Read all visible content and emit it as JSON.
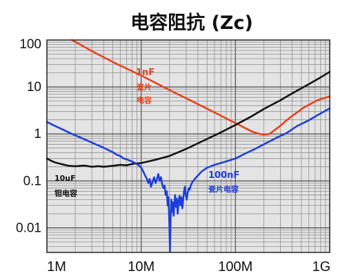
{
  "chart_data": {
    "type": "line",
    "title": "电容阻抗 (Zc)",
    "x_scale": "log",
    "y_scale": "log",
    "xlim": [
      1000000.0,
      1000000000.0
    ],
    "ylim": [
      0.003,
      100
    ],
    "grid": true,
    "x_ticks": [
      {
        "value": 1000000.0,
        "label": "1M"
      },
      {
        "value": 10000000.0,
        "label": "10M"
      },
      {
        "value": 100000000.0,
        "label": "100M"
      },
      {
        "value": 1000000000.0,
        "label": "1G"
      }
    ],
    "y_ticks": [
      {
        "value": 100,
        "label": "100"
      },
      {
        "value": 10,
        "label": "10"
      },
      {
        "value": 1,
        "label": "1"
      },
      {
        "value": 0.1,
        "label": "0.1"
      },
      {
        "value": 0.01,
        "label": "0.01"
      }
    ],
    "series": [
      {
        "label": "1nF",
        "sublabel": [
          "瓷片",
          "电容"
        ],
        "color": "#e8401c",
        "points": [
          [
            1850000.0,
            100
          ],
          [
            3000000.0,
            58
          ],
          [
            5000000.0,
            34
          ],
          [
            10000000.0,
            17.5
          ],
          [
            20000000.0,
            8.6
          ],
          [
            50000000.0,
            3.45
          ],
          [
            100000000.0,
            1.7
          ],
          [
            150000000.0,
            1.12
          ],
          [
            180000000.0,
            1.0
          ],
          [
            200000000.0,
            0.96
          ],
          [
            230000000.0,
            1.0
          ],
          [
            260000000.0,
            1.2
          ],
          [
            300000000.0,
            1.5
          ],
          [
            375000000.0,
            2.2
          ],
          [
            525000000.0,
            3.6
          ],
          [
            740000000.0,
            5.2
          ],
          [
            1000000000.0,
            6.3
          ]
        ]
      },
      {
        "label": "10uF",
        "sublabel": [
          "钽电容"
        ],
        "color": "#111111",
        "points": [
          [
            1000000.0,
            0.3
          ],
          [
            1100000.0,
            0.27
          ],
          [
            1200000.0,
            0.25
          ],
          [
            1400000.0,
            0.23
          ],
          [
            1700000.0,
            0.21
          ],
          [
            2000000.0,
            0.205
          ],
          [
            2500000.0,
            0.212
          ],
          [
            3000000.0,
            0.2
          ],
          [
            3500000.0,
            0.206
          ],
          [
            4000000.0,
            0.2
          ],
          [
            5000000.0,
            0.21
          ],
          [
            6000000.0,
            0.22
          ],
          [
            7000000.0,
            0.215
          ],
          [
            8000000.0,
            0.23
          ],
          [
            9000000.0,
            0.235
          ],
          [
            10000000.0,
            0.24
          ],
          [
            12000000.0,
            0.26
          ],
          [
            15000000.0,
            0.29
          ],
          [
            20000000.0,
            0.34
          ],
          [
            30000000.0,
            0.48
          ],
          [
            50000000.0,
            0.78
          ],
          [
            70000000.0,
            1.08
          ],
          [
            100000000.0,
            1.55
          ],
          [
            150000000.0,
            2.4
          ],
          [
            200000000.0,
            3.4
          ],
          [
            300000000.0,
            5.2
          ],
          [
            400000000.0,
            7.3
          ],
          [
            600000000.0,
            11.5
          ],
          [
            800000000.0,
            16
          ],
          [
            1000000000.0,
            21
          ]
        ]
      },
      {
        "label": "100nF",
        "sublabel": [
          "瓷片电容"
        ],
        "color": "#1d3ed8",
        "points": [
          [
            1000000.0,
            1.8
          ],
          [
            1200000.0,
            1.5
          ],
          [
            1500000.0,
            1.22
          ],
          [
            1800000.0,
            1.02
          ],
          [
            2200000.0,
            0.86
          ],
          [
            2700000.0,
            0.72
          ],
          [
            3300000.0,
            0.6
          ],
          [
            3900000.0,
            0.52
          ],
          [
            4500000.0,
            0.45
          ],
          [
            5000000.0,
            0.41
          ],
          [
            5500000.0,
            0.36
          ],
          [
            6000000.0,
            0.34
          ],
          [
            6500000.0,
            0.3
          ],
          [
            7000000.0,
            0.29
          ],
          [
            7500000.0,
            0.27
          ],
          [
            8000000.0,
            0.26
          ],
          [
            8600000.0,
            0.24
          ],
          [
            9300000.0,
            0.22
          ],
          [
            10000000.0,
            0.19
          ],
          [
            10500000.0,
            0.16
          ],
          [
            11000000.0,
            0.13
          ],
          [
            11500000.0,
            0.11
          ],
          [
            11900000.0,
            0.09
          ],
          [
            12300000.0,
            0.11
          ],
          [
            12700000.0,
            0.075
          ],
          [
            13200000.0,
            0.095
          ],
          [
            13700000.0,
            0.12
          ],
          [
            14200000.0,
            0.09
          ],
          [
            14700000.0,
            0.11
          ],
          [
            15200000.0,
            0.14
          ],
          [
            15700000.0,
            0.1
          ],
          [
            16200000.0,
            0.12
          ],
          [
            16700000.0,
            0.085
          ],
          [
            17200000.0,
            0.07
          ],
          [
            17700000.0,
            0.08
          ],
          [
            18200000.0,
            0.05
          ],
          [
            18700000.0,
            0.06
          ],
          [
            19100000.0,
            0.03
          ],
          [
            19500000.0,
            0.045
          ],
          [
            19900000.0,
            0.012
          ],
          [
            20200000.0,
            0.0031
          ],
          [
            20500000.0,
            0.015
          ],
          [
            20900000.0,
            0.04
          ],
          [
            21300000.0,
            0.022
          ],
          [
            21700000.0,
            0.035
          ],
          [
            22100000.0,
            0.018
          ],
          [
            22500000.0,
            0.03
          ],
          [
            22900000.0,
            0.05
          ],
          [
            23400000.0,
            0.028
          ],
          [
            23900000.0,
            0.042
          ],
          [
            24400000.0,
            0.02
          ],
          [
            24900000.0,
            0.035
          ],
          [
            25500000.0,
            0.048
          ],
          [
            26100000.0,
            0.03
          ],
          [
            26700000.0,
            0.045
          ],
          [
            27300000.0,
            0.026
          ],
          [
            27900000.0,
            0.04
          ],
          [
            28500000.0,
            0.06
          ],
          [
            29100000.0,
            0.075
          ],
          [
            29700000.0,
            0.05
          ],
          [
            30400000.0,
            0.04
          ],
          [
            31100000.0,
            0.055
          ],
          [
            31900000.0,
            0.07
          ],
          [
            32700000.0,
            0.065
          ],
          [
            33600000.0,
            0.08
          ],
          [
            35000000.0,
            0.095
          ],
          [
            37000000.0,
            0.11
          ],
          [
            40000000.0,
            0.13
          ],
          [
            44000000.0,
            0.16
          ],
          [
            50000000.0,
            0.19
          ],
          [
            60000000.0,
            0.22
          ],
          [
            70000000.0,
            0.24
          ],
          [
            85000000.0,
            0.27
          ],
          [
            100000000.0,
            0.3
          ],
          [
            130000000.0,
            0.39
          ],
          [
            162000000.0,
            0.48
          ],
          [
            200000000.0,
            0.6
          ],
          [
            270000000.0,
            0.82
          ],
          [
            350000000.0,
            1.05
          ],
          [
            445000000.0,
            1.45
          ],
          [
            600000000.0,
            1.95
          ],
          [
            740000000.0,
            2.5
          ],
          [
            1000000000.0,
            3.5
          ]
        ]
      }
    ]
  }
}
